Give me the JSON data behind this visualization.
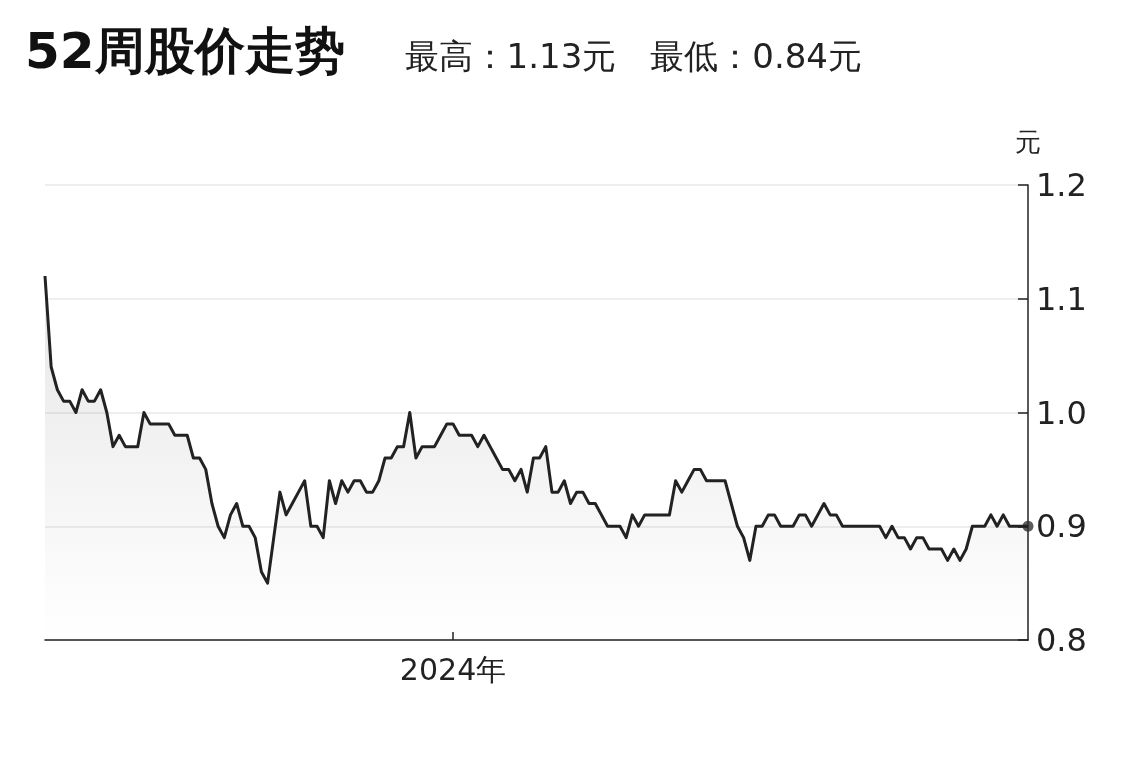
{
  "chart_data": {
    "type": "area",
    "title": "52周股价走势",
    "subtitle": "最高：1.13元　最低：0.84元",
    "ylabel": "元",
    "categories": [
      null,
      null,
      null,
      null,
      null,
      null,
      null,
      null,
      null,
      null,
      null,
      null,
      null,
      null,
      null,
      null,
      null,
      null,
      null,
      null,
      null,
      null,
      null,
      null,
      null,
      null,
      null,
      null,
      null,
      null,
      null,
      null,
      null,
      null,
      null,
      null,
      null,
      null,
      null,
      null,
      null,
      null,
      null,
      null,
      null,
      null,
      null,
      null,
      null,
      null,
      null,
      null,
      null,
      null,
      null,
      null,
      null,
      null,
      null,
      null,
      null,
      null,
      null,
      null,
      null,
      null,
      "2024年",
      null,
      null,
      null,
      null,
      null,
      null,
      null,
      null,
      null,
      null,
      null,
      null,
      null,
      null,
      null,
      null,
      null,
      null,
      null,
      null,
      null,
      null,
      null,
      null,
      null,
      null,
      null,
      null,
      null,
      null,
      null,
      null,
      null,
      null,
      null,
      null,
      null,
      null,
      null,
      null,
      null,
      null,
      null,
      null,
      null,
      null,
      null,
      null,
      null,
      null,
      null,
      null,
      null,
      null,
      null,
      null,
      null,
      null,
      null,
      null,
      null,
      null,
      null,
      null,
      null,
      null,
      null,
      null,
      null,
      null,
      null,
      null,
      null,
      null,
      null,
      null,
      null,
      null,
      null,
      null,
      null,
      null,
      null,
      null,
      null,
      null,
      null,
      null,
      null,
      null,
      null,
      null,
      null
    ],
    "series": [
      {
        "color": "#222222",
        "values": [
          1.12,
          1.04,
          1.02,
          1.01,
          1.01,
          1.0,
          1.02,
          1.01,
          1.01,
          1.02,
          1.0,
          0.97,
          0.98,
          0.97,
          0.97,
          0.97,
          1.0,
          0.99,
          0.99,
          0.99,
          0.99,
          0.98,
          0.98,
          0.98,
          0.96,
          0.96,
          0.95,
          0.92,
          0.9,
          0.89,
          0.91,
          0.92,
          0.9,
          0.9,
          0.89,
          0.86,
          0.85,
          0.89,
          0.93,
          0.91,
          0.92,
          0.93,
          0.94,
          0.9,
          0.9,
          0.89,
          0.94,
          0.92,
          0.94,
          0.93,
          0.94,
          0.94,
          0.93,
          0.93,
          0.94,
          0.96,
          0.96,
          0.97,
          0.97,
          1.0,
          0.96,
          0.97,
          0.97,
          0.97,
          0.98,
          0.99,
          0.99,
          0.98,
          0.98,
          0.98,
          0.97,
          0.98,
          0.97,
          0.96,
          0.95,
          0.95,
          0.94,
          0.95,
          0.93,
          0.96,
          0.96,
          0.97,
          0.93,
          0.93,
          0.94,
          0.92,
          0.93,
          0.93,
          0.92,
          0.92,
          0.91,
          0.9,
          0.9,
          0.9,
          0.89,
          0.91,
          0.9,
          0.91,
          0.91,
          0.91,
          0.91,
          0.91,
          0.94,
          0.93,
          0.94,
          0.95,
          0.95,
          0.94,
          0.94,
          0.94,
          0.94,
          0.92,
          0.9,
          0.89,
          0.87,
          0.9,
          0.9,
          0.91,
          0.91,
          0.9,
          0.9,
          0.9,
          0.91,
          0.91,
          0.9,
          0.91,
          0.92,
          0.91,
          0.91,
          0.9,
          0.9,
          0.9,
          0.9,
          0.9,
          0.9,
          0.9,
          0.89,
          0.9,
          0.89,
          0.89,
          0.88,
          0.89,
          0.89,
          0.88,
          0.88,
          0.88,
          0.87,
          0.88,
          0.87,
          0.88,
          0.9,
          0.9,
          0.9,
          0.91,
          0.9,
          0.91,
          0.9,
          0.9,
          0.9,
          0.9
        ]
      },
      {
        "type": "scatter",
        "color": "#333333",
        "values": [
          null,
          null,
          null,
          null,
          null,
          null,
          null,
          null,
          null,
          null,
          null,
          null,
          null,
          null,
          null,
          null,
          null,
          null,
          null,
          null,
          null,
          null,
          null,
          null,
          null,
          null,
          null,
          null,
          null,
          null,
          null,
          null,
          null,
          null,
          null,
          null,
          null,
          null,
          null,
          null,
          null,
          null,
          null,
          null,
          null,
          null,
          null,
          null,
          null,
          null,
          null,
          null,
          null,
          null,
          null,
          null,
          null,
          null,
          null,
          null,
          null,
          null,
          null,
          null,
          null,
          null,
          null,
          null,
          null,
          null,
          null,
          null,
          null,
          null,
          null,
          null,
          null,
          null,
          null,
          null,
          null,
          null,
          null,
          null,
          null,
          null,
          null,
          null,
          null,
          null,
          null,
          null,
          null,
          null,
          null,
          null,
          null,
          null,
          null,
          null,
          null,
          null,
          null,
          null,
          null,
          null,
          null,
          null,
          null,
          null,
          null,
          null,
          null,
          null,
          null,
          null,
          null,
          null,
          null,
          null,
          null,
          null,
          null,
          null,
          null,
          null,
          null,
          null,
          null,
          null,
          null,
          null,
          null,
          null,
          null,
          null,
          null,
          null,
          null,
          null,
          null,
          null,
          null,
          null,
          null,
          null,
          null,
          null,
          null,
          null,
          null,
          null,
          null,
          null,
          null,
          null,
          null,
          null,
          null,
          0.9
        ],
        "marker": "circle"
      }
    ],
    "ylim": [
      0.8,
      1.2
    ],
    "yticks": [
      {
        "value": 0.8,
        "label": "0.8"
      },
      {
        "value": 0.9,
        "label": "0.9"
      },
      {
        "value": 1.0,
        "label": "1.0"
      },
      {
        "value": 1.1,
        "label": "1.1"
      },
      {
        "value": 1.2,
        "label": "1.2"
      }
    ],
    "grid": "y"
  }
}
